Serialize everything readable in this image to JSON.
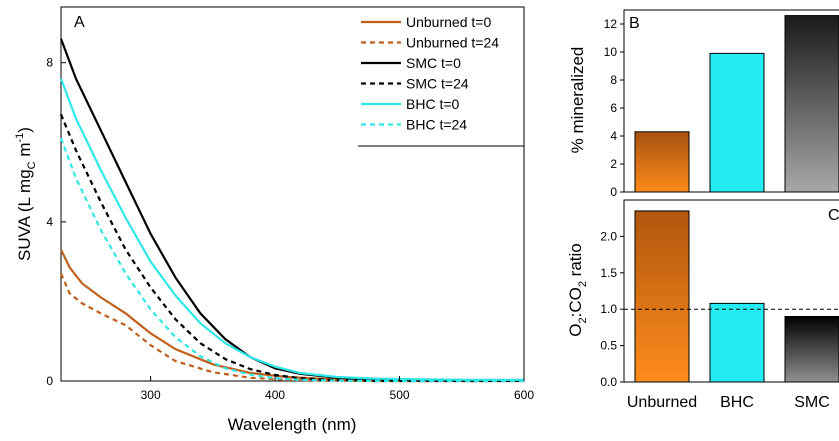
{
  "chart_data": [
    {
      "panel": "A",
      "type": "line",
      "xlabel": "Wavelength (nm)",
      "ylabel_parts": [
        "SUVA (L mg",
        "C",
        " m",
        "-1",
        ")"
      ],
      "xlim": [
        228,
        600
      ],
      "ylim": [
        0,
        9.4
      ],
      "xticks": [
        300,
        400,
        500,
        600
      ],
      "yticks": [
        0,
        4,
        8
      ],
      "legend_position": "top-right",
      "series": [
        {
          "name": "Unburned t=0",
          "color": "#c0601a",
          "dash": "solid",
          "x": [
            228,
            235,
            245,
            260,
            280,
            300,
            320,
            350,
            380,
            410,
            440,
            480,
            520,
            560,
            600
          ],
          "y": [
            3.3,
            2.85,
            2.45,
            2.1,
            1.7,
            1.2,
            0.8,
            0.42,
            0.2,
            0.1,
            0.05,
            0.03,
            0.02,
            0.01,
            0.01
          ]
        },
        {
          "name": "Unburned t=24",
          "color": "#c0601a",
          "dash": "dashed",
          "x": [
            228,
            235,
            245,
            260,
            280,
            300,
            320,
            350,
            380,
            410,
            440,
            480,
            520,
            560,
            600
          ],
          "y": [
            2.7,
            2.2,
            1.95,
            1.7,
            1.4,
            0.9,
            0.5,
            0.22,
            0.08,
            0.03,
            0.01,
            0.0,
            0.0,
            0.0,
            0.0
          ]
        },
        {
          "name": "SMC t=0",
          "color": "#000000",
          "dash": "solid",
          "x": [
            228,
            240,
            260,
            280,
            300,
            320,
            340,
            360,
            380,
            400,
            420,
            450,
            480,
            520,
            560,
            600
          ],
          "y": [
            8.6,
            7.6,
            6.3,
            5.0,
            3.7,
            2.6,
            1.7,
            1.05,
            0.6,
            0.32,
            0.18,
            0.08,
            0.04,
            0.02,
            0.01,
            0.01
          ]
        },
        {
          "name": "SMC t=24",
          "color": "#000000",
          "dash": "dashed",
          "x": [
            228,
            240,
            260,
            280,
            300,
            320,
            340,
            360,
            380,
            400,
            420,
            450,
            480,
            520,
            560,
            600
          ],
          "y": [
            6.7,
            5.8,
            4.5,
            3.3,
            2.35,
            1.55,
            0.95,
            0.55,
            0.3,
            0.15,
            0.07,
            0.02,
            0.0,
            0.0,
            0.0,
            0.0
          ]
        },
        {
          "name": "BHC t=0",
          "color": "#2ee8e8",
          "dash": "solid",
          "x": [
            228,
            240,
            260,
            280,
            300,
            320,
            340,
            360,
            380,
            400,
            420,
            450,
            480,
            520,
            560,
            600
          ],
          "y": [
            7.6,
            6.6,
            5.3,
            4.1,
            3.0,
            2.15,
            1.45,
            0.95,
            0.6,
            0.36,
            0.2,
            0.1,
            0.06,
            0.04,
            0.03,
            0.03
          ]
        },
        {
          "name": "BHC t=24",
          "color": "#2ee8e8",
          "dash": "dashed",
          "x": [
            228,
            240,
            260,
            280,
            300,
            320,
            340,
            360,
            380,
            400,
            420,
            450,
            480,
            520,
            560,
            600
          ],
          "y": [
            6.1,
            5.1,
            3.8,
            2.7,
            1.8,
            1.1,
            0.62,
            0.32,
            0.16,
            0.07,
            0.03,
            0.01,
            0.0,
            0.0,
            0.0,
            0.0
          ]
        }
      ]
    },
    {
      "panel": "B",
      "type": "bar",
      "ylabel": "% mineralized",
      "ylim": [
        0,
        13
      ],
      "yticks": [
        0,
        2,
        4,
        6,
        8,
        10,
        12
      ],
      "categories": [
        "Unburned",
        "BHC",
        "SMC"
      ],
      "values": [
        4.3,
        9.9,
        12.6
      ],
      "colors": [
        "#f07a10",
        "#22ecf2",
        "#808080"
      ]
    },
    {
      "panel": "C",
      "type": "bar",
      "ylabel_parts": [
        "O",
        "2",
        ":CO",
        "2",
        " ratio"
      ],
      "ylim": [
        0,
        2.5
      ],
      "yticks": [
        0.0,
        0.5,
        1.0,
        1.5,
        2.0
      ],
      "categories": [
        "Unburned",
        "BHC",
        "SMC"
      ],
      "values": [
        2.35,
        1.08,
        0.9
      ],
      "colors": [
        "#e06c08",
        "#22ecf2",
        "#303030"
      ],
      "reference_line": 1.0
    }
  ]
}
